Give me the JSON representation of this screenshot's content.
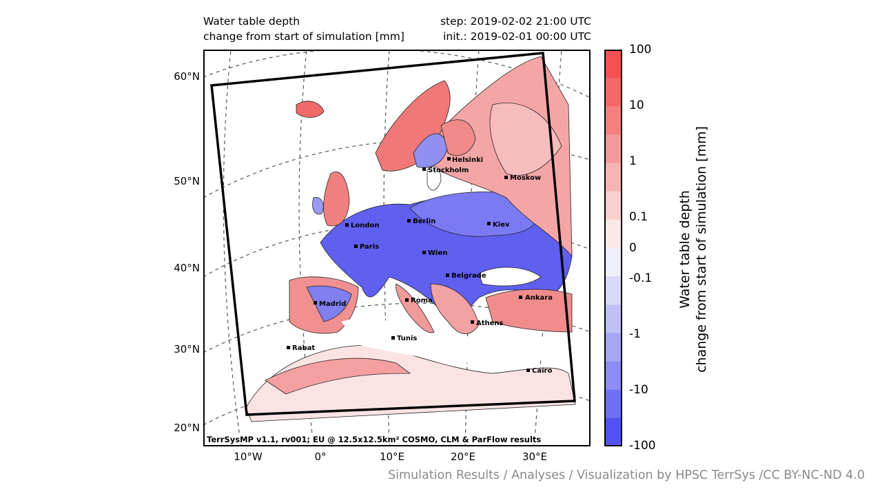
{
  "header": {
    "title_line1": "Water table depth",
    "title_line2": "change from start of simulation [mm]",
    "step": "step: 2019-02-02 21:00 UTC",
    "init": "init.: 2019-02-01 00:00 UTC"
  },
  "map": {
    "lat_labels": [
      "60°N",
      "50°N",
      "40°N",
      "30°N",
      "20°N"
    ],
    "lon_labels": [
      "10°W",
      "0°",
      "10°E",
      "20°E",
      "30°E"
    ],
    "credit": "TerrSysMP v1.1, rv001; EU @ 12.5x12.5km² COSMO, CLM & ParFlow results",
    "cities": [
      "Helsinki",
      "Stockholm",
      "Moskow",
      "London",
      "Berlin",
      "Kiev",
      "Paris",
      "Wien",
      "Belgrade",
      "Madrid",
      "Roma",
      "Ankara",
      "Athens",
      "Tunis",
      "Rabat",
      "Cairo"
    ]
  },
  "colorbar": {
    "ticks": [
      "100",
      "10",
      "1",
      "0.1",
      "0",
      "-0.1",
      "-1",
      "-10",
      "-100"
    ],
    "label_line1": "Water table depth",
    "label_line2": "change from start of simulation [mm]",
    "colors": [
      "#f45050",
      "#f46868",
      "#f58080",
      "#f59a9a",
      "#f7b4b4",
      "#f9d0d0",
      "#fbe8e8",
      "#eeeefb",
      "#d8d8f8",
      "#c0c0f6",
      "#a6a6f4",
      "#8c8cf4",
      "#7070f4",
      "#5252f2"
    ]
  },
  "footer": "Simulation Results / Analyses / Visualization by HPSC TerrSys /CC BY-NC-ND 4.0"
}
